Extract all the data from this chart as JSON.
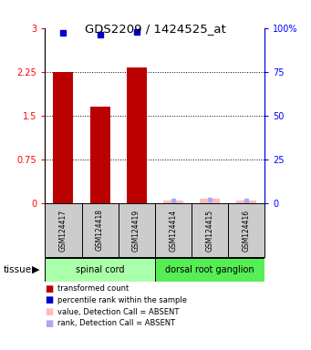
{
  "title": "GDS2209 / 1424525_at",
  "samples": [
    "GSM124417",
    "GSM124418",
    "GSM124419",
    "GSM124414",
    "GSM124415",
    "GSM124416"
  ],
  "red_values": [
    2.25,
    1.65,
    2.32,
    0.0,
    0.0,
    0.0
  ],
  "blue_percentiles": [
    97,
    96,
    98,
    null,
    null,
    null
  ],
  "absent_red": [
    null,
    null,
    null,
    0.05,
    0.07,
    0.04
  ],
  "absent_blue": [
    null,
    null,
    null,
    1.5,
    2.0,
    1.2
  ],
  "group1_indices": [
    0,
    1,
    2
  ],
  "group2_indices": [
    3,
    4,
    5
  ],
  "group1_label": "spinal cord",
  "group2_label": "dorsal root ganglion",
  "group1_color": "#aaffaa",
  "group2_color": "#55ee55",
  "ylim_left": [
    0,
    3
  ],
  "ylim_right": [
    0,
    100
  ],
  "yticks_left": [
    0,
    0.75,
    1.5,
    2.25,
    3
  ],
  "yticks_right": [
    0,
    25,
    50,
    75,
    100
  ],
  "bar_color_present": "#bb0000",
  "bar_color_absent": "#ffbbbb",
  "blue_color_present": "#0000cc",
  "blue_color_absent": "#aaaaee",
  "grid_yticks": [
    0.75,
    1.5,
    2.25
  ],
  "bar_width": 0.55,
  "legend_items": [
    {
      "color": "#bb0000",
      "label": "transformed count"
    },
    {
      "color": "#0000cc",
      "label": "percentile rank within the sample"
    },
    {
      "color": "#ffbbbb",
      "label": "value, Detection Call = ABSENT"
    },
    {
      "color": "#aaaaee",
      "label": "rank, Detection Call = ABSENT"
    }
  ]
}
